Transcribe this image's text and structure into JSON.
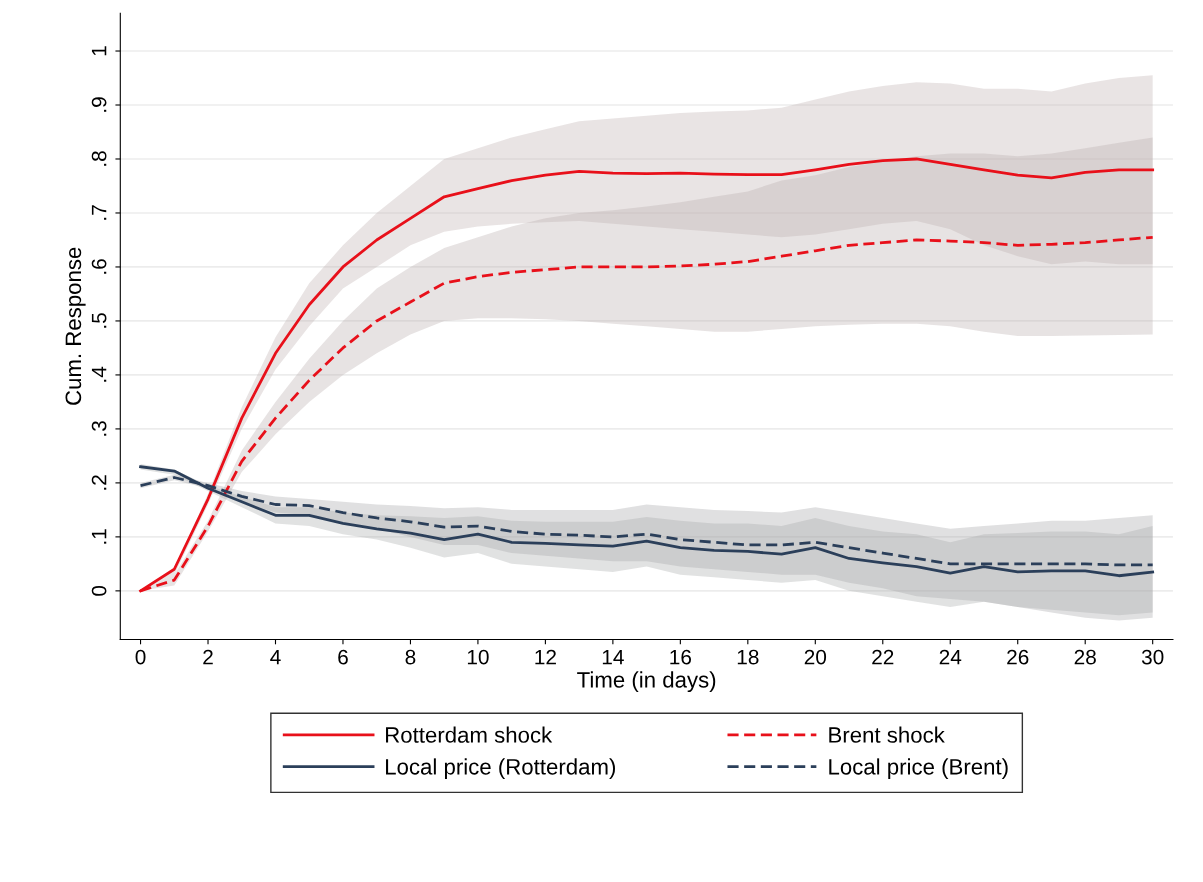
{
  "chart_data": {
    "type": "line",
    "xlabel": "Time (in days)",
    "ylabel": "Cum. Response",
    "x": [
      0,
      1,
      2,
      3,
      4,
      5,
      6,
      7,
      8,
      9,
      10,
      11,
      12,
      13,
      14,
      15,
      16,
      17,
      18,
      19,
      20,
      21,
      22,
      23,
      24,
      25,
      26,
      27,
      28,
      29,
      30
    ],
    "series": [
      {
        "name": "Rotterdam shock",
        "color": "#e8101a",
        "line_style": "solid",
        "values": [
          0,
          0.04,
          0.17,
          0.32,
          0.44,
          0.53,
          0.6,
          0.65,
          0.69,
          0.73,
          0.745,
          0.76,
          0.77,
          0.777,
          0.774,
          0.773,
          0.774,
          0.772,
          0.771,
          0.771,
          0.78,
          0.79,
          0.797,
          0.8,
          0.79,
          0.78,
          0.77,
          0.765,
          0.775,
          0.78,
          0.78
        ],
        "upper": [
          0,
          0.04,
          0.18,
          0.34,
          0.47,
          0.57,
          0.64,
          0.7,
          0.75,
          0.8,
          0.82,
          0.84,
          0.855,
          0.87,
          0.875,
          0.88,
          0.885,
          0.888,
          0.89,
          0.895,
          0.91,
          0.925,
          0.935,
          0.942,
          0.94,
          0.93,
          0.93,
          0.925,
          0.94,
          0.95,
          0.955
        ],
        "lower": [
          0,
          0.03,
          0.16,
          0.3,
          0.41,
          0.49,
          0.56,
          0.6,
          0.64,
          0.665,
          0.675,
          0.68,
          0.683,
          0.685,
          0.68,
          0.675,
          0.67,
          0.665,
          0.66,
          0.655,
          0.66,
          0.67,
          0.68,
          0.685,
          0.67,
          0.64,
          0.62,
          0.605,
          0.61,
          0.605,
          0.605
        ]
      },
      {
        "name": "Brent shock",
        "color": "#e8101a",
        "line_style": "dashed",
        "values": [
          0,
          0.02,
          0.12,
          0.24,
          0.32,
          0.39,
          0.45,
          0.5,
          0.535,
          0.57,
          0.582,
          0.59,
          0.595,
          0.6,
          0.6,
          0.6,
          0.602,
          0.605,
          0.61,
          0.62,
          0.63,
          0.64,
          0.645,
          0.65,
          0.648,
          0.645,
          0.64,
          0.642,
          0.645,
          0.65,
          0.655
        ],
        "upper": [
          0,
          0.03,
          0.13,
          0.26,
          0.35,
          0.43,
          0.5,
          0.56,
          0.6,
          0.635,
          0.655,
          0.675,
          0.69,
          0.7,
          0.705,
          0.712,
          0.72,
          0.73,
          0.74,
          0.76,
          0.77,
          0.785,
          0.795,
          0.805,
          0.81,
          0.81,
          0.805,
          0.81,
          0.82,
          0.83,
          0.84
        ],
        "lower": [
          0,
          0.01,
          0.11,
          0.22,
          0.29,
          0.35,
          0.4,
          0.44,
          0.475,
          0.5,
          0.505,
          0.505,
          0.503,
          0.5,
          0.495,
          0.49,
          0.485,
          0.48,
          0.48,
          0.485,
          0.49,
          0.493,
          0.495,
          0.495,
          0.49,
          0.48,
          0.472,
          0.472,
          0.473,
          0.474,
          0.475
        ]
      },
      {
        "name": "Local price (Rotterdam)",
        "color": "#2b3f5a",
        "line_style": "solid",
        "values": [
          0.23,
          0.222,
          0.19,
          0.165,
          0.14,
          0.14,
          0.125,
          0.115,
          0.107,
          0.095,
          0.105,
          0.09,
          0.088,
          0.085,
          0.083,
          0.092,
          0.08,
          0.075,
          0.073,
          0.068,
          0.08,
          0.06,
          0.052,
          0.045,
          0.033,
          0.045,
          0.035,
          0.037,
          0.037,
          0.028,
          0.035
        ],
        "upper": [
          0.235,
          0.225,
          0.195,
          0.175,
          0.155,
          0.155,
          0.145,
          0.14,
          0.138,
          0.135,
          0.138,
          0.13,
          0.128,
          0.128,
          0.128,
          0.137,
          0.13,
          0.125,
          0.125,
          0.12,
          0.135,
          0.12,
          0.11,
          0.105,
          0.09,
          0.105,
          0.107,
          0.11,
          0.11,
          0.105,
          0.12
        ],
        "lower": [
          0.225,
          0.215,
          0.185,
          0.155,
          0.125,
          0.12,
          0.105,
          0.095,
          0.08,
          0.062,
          0.07,
          0.05,
          0.045,
          0.04,
          0.035,
          0.045,
          0.03,
          0.025,
          0.02,
          0.015,
          0.02,
          0.0,
          -0.01,
          -0.02,
          -0.03,
          -0.02,
          -0.03,
          -0.035,
          -0.04,
          -0.045,
          -0.04
        ]
      },
      {
        "name": "Local price (Brent)",
        "color": "#2b3f5a",
        "line_style": "dashed",
        "values": [
          0.195,
          0.21,
          0.195,
          0.175,
          0.16,
          0.158,
          0.145,
          0.135,
          0.128,
          0.118,
          0.12,
          0.11,
          0.105,
          0.103,
          0.1,
          0.105,
          0.095,
          0.09,
          0.085,
          0.085,
          0.09,
          0.08,
          0.07,
          0.06,
          0.05,
          0.05,
          0.05,
          0.05,
          0.05,
          0.048,
          0.048
        ],
        "upper": [
          0.2,
          0.215,
          0.2,
          0.185,
          0.175,
          0.17,
          0.165,
          0.16,
          0.157,
          0.153,
          0.155,
          0.15,
          0.15,
          0.15,
          0.15,
          0.16,
          0.155,
          0.15,
          0.148,
          0.145,
          0.155,
          0.145,
          0.135,
          0.125,
          0.115,
          0.12,
          0.125,
          0.13,
          0.13,
          0.135,
          0.14
        ],
        "lower": [
          0.19,
          0.205,
          0.19,
          0.165,
          0.145,
          0.14,
          0.125,
          0.115,
          0.1,
          0.085,
          0.085,
          0.07,
          0.065,
          0.06,
          0.055,
          0.055,
          0.045,
          0.04,
          0.035,
          0.03,
          0.03,
          0.015,
          0.005,
          -0.01,
          -0.015,
          -0.02,
          -0.03,
          -0.04,
          -0.05,
          -0.055,
          -0.05
        ]
      }
    ],
    "xlim": [
      -0.6,
      30.6
    ],
    "xticks": [
      0,
      2,
      4,
      6,
      8,
      10,
      12,
      14,
      16,
      18,
      20,
      22,
      24,
      26,
      28,
      30
    ],
    "ylim": [
      -0.09,
      1.07
    ],
    "yticks": [
      {
        "value": 0,
        "label": "0"
      },
      {
        "value": 0.1,
        "label": ".1"
      },
      {
        "value": 0.2,
        "label": ".2"
      },
      {
        "value": 0.3,
        "label": ".3"
      },
      {
        "value": 0.4,
        "label": ".4"
      },
      {
        "value": 0.5,
        "label": ".5"
      },
      {
        "value": 0.6,
        "label": ".6"
      },
      {
        "value": 0.7,
        "label": ".7"
      },
      {
        "value": 0.8,
        "label": ".8"
      },
      {
        "value": 0.9,
        "label": ".9"
      },
      {
        "value": 1,
        "label": "1"
      }
    ],
    "grid": "y",
    "legend": "bottom",
    "marker": "none"
  }
}
